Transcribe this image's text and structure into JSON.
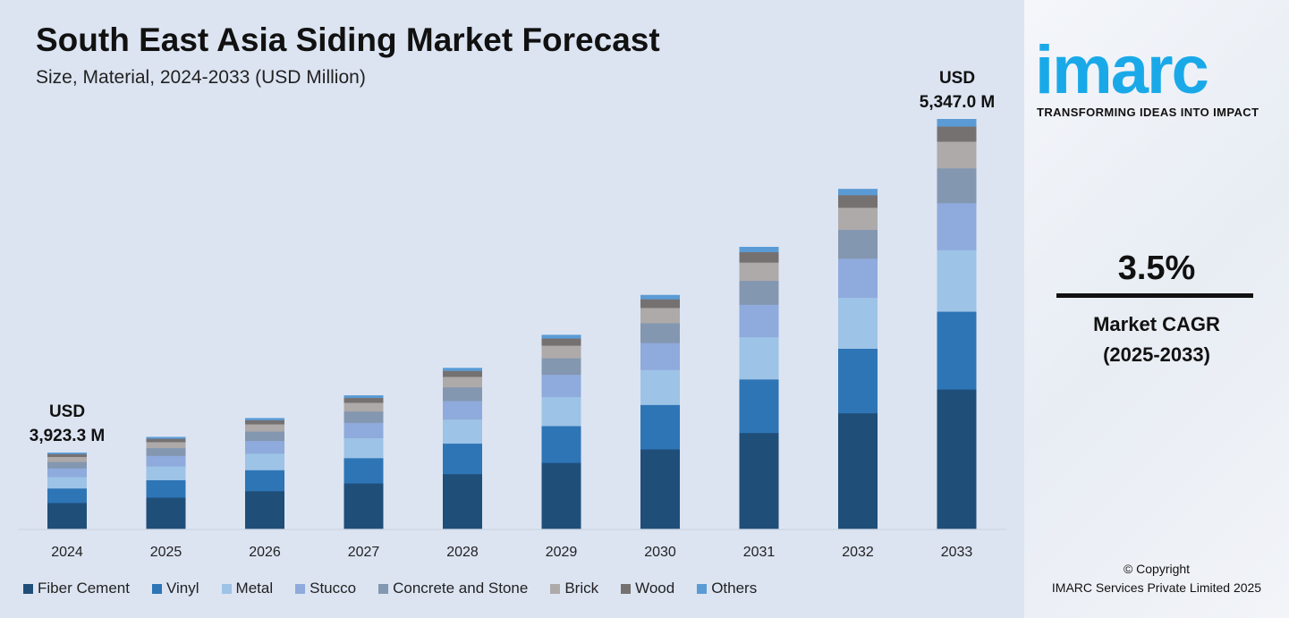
{
  "header": {
    "title": "South East Asia Siding Market Forecast",
    "subtitle": "Size, Material, 2024-2033 (USD Million)"
  },
  "chart_data": {
    "type": "bar",
    "stacked": true,
    "title": "South East Asia Siding Market Forecast",
    "subtitle": "Size, Material, 2024-2033 (USD Million)",
    "categories": [
      "2024",
      "2025",
      "2026",
      "2027",
      "2028",
      "2029",
      "2030",
      "2031",
      "2032",
      "2033"
    ],
    "totals": [
      3923.3,
      4060.6,
      4202.7,
      4349.8,
      4502.1,
      4659.6,
      4822.7,
      4991.5,
      5166.2,
      5347.0
    ],
    "series": [
      {
        "name": "Fiber Cement",
        "share": 0.34,
        "color": "#1f4e79"
      },
      {
        "name": "Vinyl",
        "share": 0.19,
        "color": "#2e75b6"
      },
      {
        "name": "Metal",
        "share": 0.15,
        "color": "#9dc3e6"
      },
      {
        "name": "Stucco",
        "share": 0.115,
        "color": "#8faadc"
      },
      {
        "name": "Concrete and Stone",
        "share": 0.085,
        "color": "#8497b0"
      },
      {
        "name": "Brick",
        "share": 0.065,
        "color": "#aeaaaa"
      },
      {
        "name": "Wood",
        "share": 0.037,
        "color": "#767171"
      },
      {
        "name": "Others",
        "share": 0.018,
        "color": "#5b9bd5"
      }
    ],
    "annotations": {
      "first_usd": "USD",
      "first_value": "3,923.3 M",
      "last_usd": "USD",
      "last_value": "5,347.0 M"
    },
    "legend_position": "bottom",
    "grid": false
  },
  "sidebar": {
    "logo": "imarc",
    "tagline": "TRANSFORMING IDEAS INTO IMPACT",
    "cagr_value": "3.5%",
    "cagr_label": "Market CAGR",
    "cagr_period": "(2025-2033)",
    "copyright": "© Copyright",
    "company": "IMARC Services Private Limited 2025"
  }
}
